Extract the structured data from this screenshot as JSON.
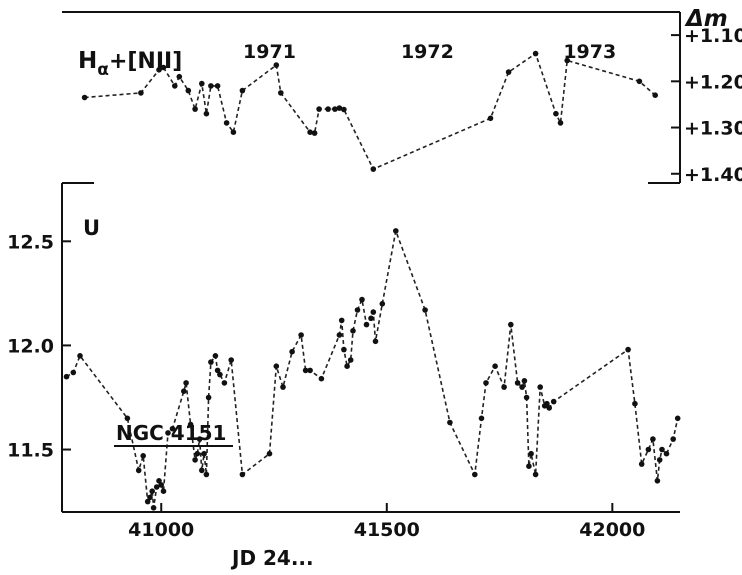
{
  "chart_data": {
    "type": "line",
    "xlabel": "JD 24...",
    "x_range": [
      40780,
      42150
    ],
    "x_ticks": [
      41000,
      41500,
      42000
    ],
    "ylabel_right": "Δm",
    "year_labels": [
      {
        "text": "1971",
        "x": 41240
      },
      {
        "text": "1972",
        "x": 41590
      },
      {
        "text": "1973",
        "x": 41950
      }
    ],
    "annotation": "NGC 4151",
    "series": [
      {
        "name": "Hα + [N II]",
        "name_main": "H",
        "name_sub": "α",
        "name_rest": "+[NII]",
        "axis": "right",
        "y_range": [
          1.05,
          1.42
        ],
        "y_ticks": [
          1.1,
          1.2,
          1.3,
          1.4
        ],
        "y_tick_labels": [
          "+1.10",
          "+1.20",
          "+1.30",
          "+1.40"
        ],
        "x": [
          40830,
          40955,
          40995,
          41005,
          41030,
          41040,
          41060,
          41075,
          41090,
          41100,
          41110,
          41125,
          41145,
          41160,
          41180,
          41255,
          41265,
          41330,
          41340,
          41350,
          41370,
          41385,
          41395,
          41405,
          41470,
          41730,
          41770,
          41830,
          41875,
          41885,
          41900,
          42060,
          42095
        ],
        "y": [
          1.235,
          1.225,
          1.175,
          1.17,
          1.21,
          1.19,
          1.22,
          1.26,
          1.205,
          1.27,
          1.21,
          1.21,
          1.29,
          1.31,
          1.22,
          1.165,
          1.225,
          1.31,
          1.312,
          1.26,
          1.26,
          1.26,
          1.258,
          1.261,
          1.39,
          1.28,
          1.18,
          1.14,
          1.27,
          1.29,
          1.155,
          1.2,
          1.23
        ]
      },
      {
        "name": "U",
        "axis": "left",
        "y_range": [
          12.78,
          11.2
        ],
        "y_ticks": [
          11.5,
          12.0,
          12.5
        ],
        "y_tick_labels": [
          "11.5",
          "12.0",
          "12.5"
        ],
        "x": [
          40790,
          40805,
          40820,
          40925,
          40950,
          40960,
          40970,
          40975,
          40980,
          40983,
          40990,
          40995,
          41000,
          41005,
          41015,
          41025,
          41050,
          41055,
          41065,
          41075,
          41080,
          41085,
          41090,
          41095,
          41100,
          41105,
          41110,
          41120,
          41125,
          41130,
          41140,
          41155,
          41180,
          41240,
          41255,
          41270,
          41290,
          41310,
          41320,
          41330,
          41355,
          41395,
          41400,
          41405,
          41412,
          41420,
          41425,
          41435,
          41445,
          41455,
          41465,
          41470,
          41475,
          41490,
          41520,
          41585,
          41640,
          41695,
          41710,
          41720,
          41740,
          41760,
          41775,
          41790,
          41800,
          41805,
          41810,
          41815,
          41820,
          41830,
          41840,
          41850,
          41855,
          41860,
          41870,
          42035,
          42050,
          42065,
          42080,
          42090,
          42100,
          42105,
          42110,
          42120,
          42135,
          42145
        ],
        "y": [
          11.85,
          11.87,
          11.95,
          11.65,
          11.4,
          11.47,
          11.25,
          11.27,
          11.3,
          11.22,
          11.32,
          11.35,
          11.33,
          11.3,
          11.58,
          11.6,
          11.78,
          11.82,
          11.62,
          11.45,
          11.48,
          11.55,
          11.4,
          11.48,
          11.38,
          11.75,
          11.92,
          11.95,
          11.88,
          11.86,
          11.82,
          11.93,
          11.38,
          11.48,
          11.9,
          11.8,
          11.97,
          12.05,
          11.88,
          11.88,
          11.84,
          12.05,
          12.12,
          11.98,
          11.9,
          11.93,
          12.07,
          12.17,
          12.22,
          12.1,
          12.13,
          12.16,
          12.02,
          12.2,
          12.55,
          12.17,
          11.63,
          11.38,
          11.65,
          11.82,
          11.9,
          11.8,
          12.1,
          11.82,
          11.8,
          11.83,
          11.75,
          11.42,
          11.48,
          11.38,
          11.8,
          11.71,
          11.72,
          11.7,
          11.73,
          11.98,
          11.72,
          11.43,
          11.5,
          11.55,
          11.35,
          11.45,
          11.5,
          11.48,
          11.55,
          11.65
        ]
      }
    ]
  }
}
